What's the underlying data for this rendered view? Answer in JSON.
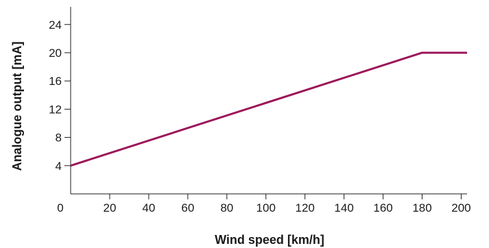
{
  "chart_data": {
    "type": "line",
    "title": "",
    "xlabel": "Wind speed [km/h]",
    "ylabel": "Analogue output [mA]",
    "xlim": [
      0,
      203
    ],
    "ylim": [
      0,
      26.5
    ],
    "xticks": [
      0,
      20,
      40,
      60,
      80,
      100,
      120,
      140,
      160,
      180,
      200
    ],
    "yticks": [
      4,
      8,
      12,
      16,
      20,
      24
    ],
    "grid": false,
    "series": [
      {
        "color": "#9c1459",
        "points": [
          [
            0,
            4
          ],
          [
            180,
            20
          ],
          [
            203,
            20
          ]
        ]
      }
    ]
  }
}
